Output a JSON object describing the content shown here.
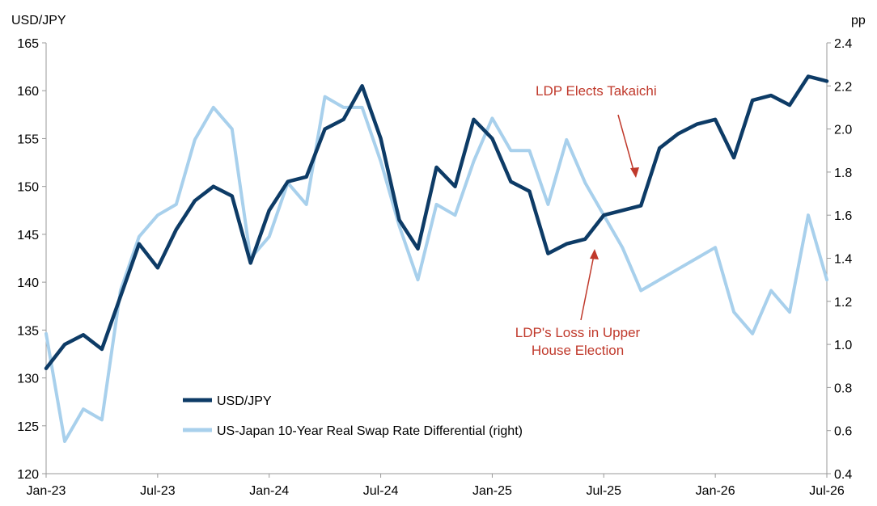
{
  "chart_data": {
    "type": "line",
    "left_axis_unit": "USD/JPY",
    "right_axis_unit": "pp",
    "x_ticks": [
      "Jan-23",
      "Jul-23",
      "Jan-24",
      "Jul-24",
      "Jan-25",
      "Jul-25",
      "Jan-26",
      "Jul-26"
    ],
    "y_left_ticks": [
      "120",
      "125",
      "130",
      "135",
      "140",
      "145",
      "150",
      "155",
      "160",
      "165"
    ],
    "y_right_ticks": [
      "0.4",
      "0.6",
      "0.8",
      "1.0",
      "1.2",
      "1.4",
      "1.6",
      "1.8",
      "2.0",
      "2.2",
      "2.4"
    ],
    "ylim_left": [
      120,
      165
    ],
    "ylim_right": [
      0.4,
      2.4
    ],
    "xlim": [
      "2023-01",
      "2026-07"
    ],
    "grid": false,
    "legend_position": "bottom-left",
    "series": [
      {
        "name": "USD/JPY",
        "axis": "left",
        "color": "#0d3b66",
        "points": [
          [
            "2023-01",
            131.0
          ],
          [
            "2023-02",
            133.5
          ],
          [
            "2023-03",
            134.5
          ],
          [
            "2023-04",
            133.0
          ],
          [
            "2023-05",
            138.5
          ],
          [
            "2023-06",
            144.0
          ],
          [
            "2023-07",
            141.5
          ],
          [
            "2023-08",
            145.5
          ],
          [
            "2023-09",
            148.5
          ],
          [
            "2023-10",
            150.0
          ],
          [
            "2023-11",
            149.0
          ],
          [
            "2023-12",
            142.0
          ],
          [
            "2024-01",
            147.5
          ],
          [
            "2024-02",
            150.5
          ],
          [
            "2024-03",
            151.0
          ],
          [
            "2024-04",
            156.0
          ],
          [
            "2024-05",
            157.0
          ],
          [
            "2024-06",
            160.5
          ],
          [
            "2024-07",
            155.0
          ],
          [
            "2024-08",
            146.5
          ],
          [
            "2024-09",
            143.5
          ],
          [
            "2024-10",
            152.0
          ],
          [
            "2024-11",
            150.0
          ],
          [
            "2024-12",
            157.0
          ],
          [
            "2025-01",
            155.0
          ],
          [
            "2025-02",
            150.5
          ],
          [
            "2025-03",
            149.5
          ],
          [
            "2025-04",
            143.0
          ],
          [
            "2025-05",
            144.0
          ],
          [
            "2025-06",
            144.5
          ],
          [
            "2025-07",
            147.0
          ],
          [
            "2025-08",
            147.5
          ],
          [
            "2025-09",
            148.0
          ],
          [
            "2025-10",
            154.0
          ],
          [
            "2025-11",
            155.5
          ],
          [
            "2025-12",
            156.5
          ],
          [
            "2026-01",
            157.0
          ],
          [
            "2026-02",
            153.0
          ],
          [
            "2026-03",
            159.0
          ],
          [
            "2026-04",
            159.5
          ],
          [
            "2026-05",
            158.5
          ],
          [
            "2026-06",
            161.5
          ],
          [
            "2026-07",
            161.0
          ]
        ]
      },
      {
        "name": "US-Japan 10-Year Real Swap Rate Differential (right)",
        "axis": "right",
        "color": "#a8d0ec",
        "points": [
          [
            "2023-01",
            1.05
          ],
          [
            "2023-02",
            0.55
          ],
          [
            "2023-03",
            0.7
          ],
          [
            "2023-04",
            0.65
          ],
          [
            "2023-05",
            1.25
          ],
          [
            "2023-06",
            1.5
          ],
          [
            "2023-07",
            1.6
          ],
          [
            "2023-08",
            1.65
          ],
          [
            "2023-09",
            1.95
          ],
          [
            "2023-10",
            2.1
          ],
          [
            "2023-11",
            2.0
          ],
          [
            "2023-12",
            1.4
          ],
          [
            "2024-01",
            1.5
          ],
          [
            "2024-02",
            1.75
          ],
          [
            "2024-03",
            1.65
          ],
          [
            "2024-04",
            2.15
          ],
          [
            "2024-05",
            2.1
          ],
          [
            "2024-06",
            2.1
          ],
          [
            "2024-07",
            1.85
          ],
          [
            "2024-08",
            1.55
          ],
          [
            "2024-09",
            1.3
          ],
          [
            "2024-10",
            1.65
          ],
          [
            "2024-11",
            1.6
          ],
          [
            "2024-12",
            1.85
          ],
          [
            "2025-01",
            2.05
          ],
          [
            "2025-02",
            1.9
          ],
          [
            "2025-03",
            1.9
          ],
          [
            "2025-04",
            1.65
          ],
          [
            "2025-05",
            1.95
          ],
          [
            "2025-06",
            1.75
          ],
          [
            "2025-07",
            1.6
          ],
          [
            "2025-08",
            1.45
          ],
          [
            "2025-09",
            1.25
          ],
          [
            "2025-10",
            1.3
          ],
          [
            "2025-11",
            1.35
          ],
          [
            "2025-12",
            1.4
          ],
          [
            "2026-01",
            1.45
          ],
          [
            "2026-02",
            1.15
          ],
          [
            "2026-03",
            1.05
          ],
          [
            "2026-04",
            1.25
          ],
          [
            "2026-05",
            1.15
          ],
          [
            "2026-06",
            1.6
          ],
          [
            "2026-07",
            1.3
          ]
        ]
      }
    ],
    "annotations": [
      {
        "id": "takaichi",
        "lines": [
          "LDP Elects Takaichi"
        ],
        "arrow_to": [
          "2025-10",
          151.0
        ]
      },
      {
        "id": "upper-house",
        "lines": [
          "LDP's Loss in Upper",
          "House Election"
        ],
        "arrow_to": [
          "2025-07",
          145.5
        ]
      }
    ]
  }
}
